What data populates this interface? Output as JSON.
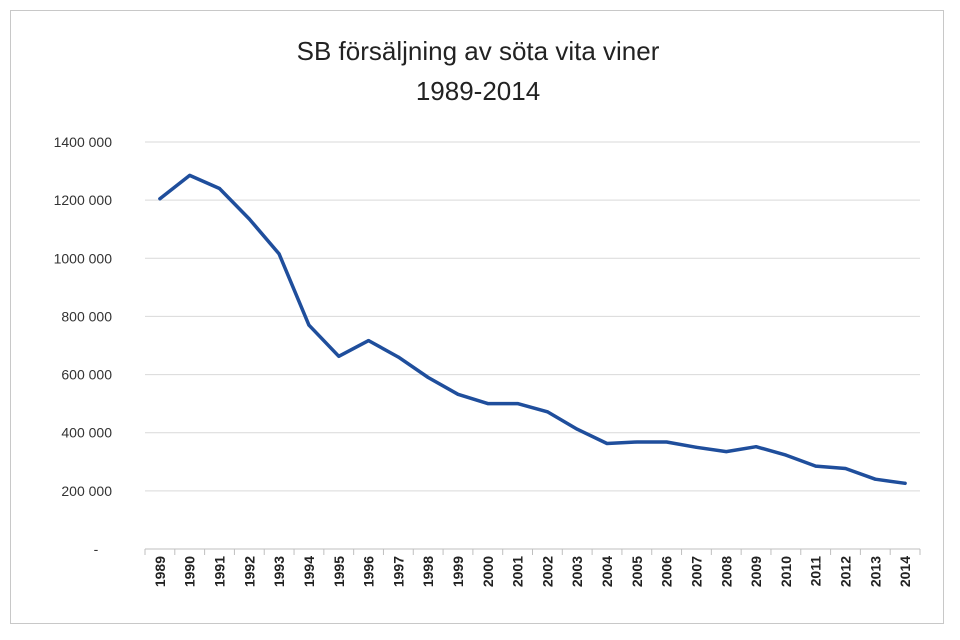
{
  "chart_data": {
    "type": "line",
    "title": "SB försäljning av söta vita viner",
    "subtitle": "1989-2014",
    "xlabel": "",
    "ylabel": "",
    "ylim": [
      0,
      1400000
    ],
    "yticks": [
      0,
      200000,
      400000,
      600000,
      800000,
      1000000,
      1200000,
      1400000
    ],
    "ytick_labels": [
      "-",
      "200 000",
      "400 000",
      "600 000",
      "800 000",
      "1000 000",
      "1200 000",
      "1400 000"
    ],
    "grid": true,
    "legend": "none",
    "series_color": "#1f4e9c",
    "categories": [
      "1989",
      "1990",
      "1991",
      "1992",
      "1993",
      "1994",
      "1995",
      "1996",
      "1997",
      "1998",
      "1999",
      "2000",
      "2001",
      "2002",
      "2003",
      "2004",
      "2005",
      "2006",
      "2007",
      "2008",
      "2009",
      "2010",
      "2011",
      "2012",
      "2013",
      "2014"
    ],
    "series": [
      {
        "values": [
          1205000,
          1285000,
          1240000,
          1135000,
          1015000,
          770000,
          663000,
          717000,
          660000,
          590000,
          532000,
          500000,
          500000,
          472000,
          412000,
          363000,
          368000,
          368000,
          350000,
          335000,
          352000,
          323000,
          285000,
          277000,
          240000,
          226000
        ]
      }
    ]
  }
}
